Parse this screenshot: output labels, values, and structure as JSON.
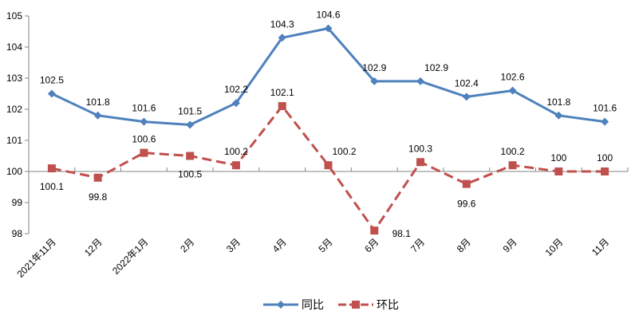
{
  "chart_data": {
    "type": "line",
    "title": "",
    "xlabel": "",
    "ylabel": "",
    "ylim": [
      98,
      105
    ],
    "yticks": [
      98,
      99,
      100,
      101,
      102,
      103,
      104,
      105
    ],
    "x_axis_crosses_at": 100,
    "grid": false,
    "legend_position": "bottom",
    "categories": [
      "2021年11月",
      "12月",
      "2022年1月",
      "2月",
      "3月",
      "4月",
      "5月",
      "6月",
      "7月",
      "8月",
      "9月",
      "10月",
      "11月"
    ],
    "series": [
      {
        "name": "同比",
        "color": "#4F81BD",
        "marker": "diamond",
        "line_style": "solid",
        "values": [
          102.5,
          101.8,
          101.6,
          101.5,
          102.2,
          104.3,
          104.6,
          102.9,
          102.9,
          102.4,
          102.6,
          101.8,
          101.6
        ]
      },
      {
        "name": "环比",
        "color": "#C0504D",
        "marker": "square",
        "line_style": "dashed",
        "values": [
          100.1,
          99.8,
          100.6,
          100.5,
          100.2,
          102.1,
          100.2,
          98.1,
          100.3,
          99.6,
          100.2,
          100,
          100
        ]
      }
    ]
  },
  "legend": {
    "items": [
      {
        "label": "同比",
        "color": "#4F81BD"
      },
      {
        "label": "环比",
        "color": "#C0504D"
      }
    ]
  }
}
